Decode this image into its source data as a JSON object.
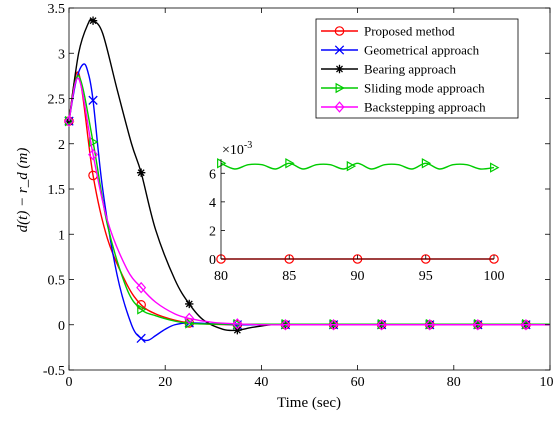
{
  "chart_data": [
    {
      "type": "line",
      "xlabel": "Time (sec)",
      "ylabel": "d(t) − r_d (m)",
      "xlim": [
        0,
        100
      ],
      "ylim": [
        -0.5,
        3.5
      ],
      "xticks": [
        "0",
        "20",
        "40",
        "60",
        "80",
        "100"
      ],
      "yticks": [
        "-0.5",
        "0",
        "0.5",
        "1",
        "1.5",
        "2",
        "2.5",
        "3",
        "3.5"
      ],
      "grid": false,
      "legend_position": "top-right",
      "series": [
        {
          "name": "Proposed method",
          "color": "#ff0000",
          "marker": "circle",
          "x": [
            0,
            2,
            5,
            8,
            12,
            15,
            18,
            22,
            25,
            30,
            35,
            40,
            45,
            55,
            65,
            75,
            85,
            95,
            100
          ],
          "y": [
            2.25,
            2.78,
            1.65,
            0.95,
            0.45,
            0.22,
            0.12,
            0.05,
            0.02,
            0.005,
            0.0,
            0.0,
            0.0,
            0.0,
            0.0,
            0.0,
            0.0,
            0.0,
            0.0
          ],
          "marker_x": [
            0,
            5,
            15,
            25,
            35,
            45,
            55,
            65,
            75,
            85,
            95
          ]
        },
        {
          "name": "Geometrical approach",
          "color": "#0000ff",
          "marker": "x",
          "x": [
            0,
            1.5,
            3,
            4,
            5,
            7,
            10,
            13,
            15,
            16.5,
            18,
            20,
            22,
            25,
            30,
            35,
            40,
            45,
            55,
            65,
            75,
            85,
            95,
            100
          ],
          "y": [
            2.25,
            2.7,
            2.88,
            2.78,
            2.48,
            1.5,
            0.55,
            0.0,
            -0.15,
            -0.17,
            -0.12,
            -0.05,
            0.0,
            0.02,
            0.01,
            0.0,
            0.0,
            0.0,
            0.0,
            0.0,
            0.0,
            0.0,
            0.0,
            0.0
          ],
          "marker_x": [
            0,
            5,
            15,
            25,
            35,
            45,
            55,
            65,
            75,
            85,
            95
          ]
        },
        {
          "name": "Bearing approach",
          "color": "#000000",
          "marker": "asterisk",
          "x": [
            0,
            2,
            4,
            5,
            7,
            10,
            13,
            15,
            18,
            22,
            25,
            28,
            32,
            35,
            38,
            42,
            45,
            55,
            65,
            75,
            85,
            95,
            100
          ],
          "y": [
            2.25,
            3.0,
            3.33,
            3.36,
            3.22,
            2.6,
            2.0,
            1.68,
            1.05,
            0.5,
            0.23,
            0.05,
            -0.05,
            -0.06,
            -0.03,
            0.0,
            0.0,
            0.0,
            0.0,
            0.0,
            0.0,
            0.0,
            0.0
          ],
          "marker_x": [
            0,
            5,
            15,
            25,
            35,
            45,
            55,
            65,
            75,
            85,
            95
          ]
        },
        {
          "name": "Sliding mode approach",
          "color": "#00cc00",
          "marker": "triangle-right",
          "x": [
            0,
            2,
            5,
            8,
            12,
            15,
            18,
            22,
            25,
            30,
            35,
            45,
            55,
            65,
            75,
            85,
            95,
            100
          ],
          "y": [
            2.25,
            2.75,
            2.02,
            1.1,
            0.4,
            0.17,
            0.1,
            0.04,
            0.015,
            0.007,
            0.0065,
            0.0065,
            0.0065,
            0.0065,
            0.0065,
            0.0065,
            0.0065,
            0.0065
          ],
          "marker_x": [
            0,
            5,
            15,
            25,
            35,
            45,
            55,
            65,
            75,
            85,
            95
          ]
        },
        {
          "name": "Backstepping approach",
          "color": "#ff00ff",
          "marker": "diamond",
          "x": [
            0,
            2,
            5,
            8,
            12,
            15,
            18,
            22,
            25,
            30,
            35,
            40,
            45,
            55,
            65,
            75,
            85,
            95,
            100
          ],
          "y": [
            2.25,
            2.72,
            1.88,
            1.15,
            0.62,
            0.41,
            0.25,
            0.12,
            0.07,
            0.025,
            0.01,
            0.0,
            0.0,
            0.0,
            0.0,
            0.0,
            0.0,
            0.0,
            0.0
          ],
          "marker_x": [
            0,
            5,
            15,
            25,
            35,
            45,
            55,
            65,
            75,
            85,
            95
          ]
        }
      ]
    },
    {
      "type": "line",
      "title": "",
      "xlim": [
        80,
        100
      ],
      "ylim": [
        0,
        0.007
      ],
      "xticks": [
        "80",
        "85",
        "90",
        "95",
        "100"
      ],
      "yticks": [
        "0",
        "2",
        "4",
        "6"
      ],
      "y_exponent_label": "×10",
      "y_exponent": "-3",
      "grid": false,
      "series": [
        {
          "name": "Sliding mode approach",
          "color": "#00cc00",
          "marker": "triangle-right",
          "x": [
            80,
            81,
            82,
            83,
            84,
            85,
            86,
            87,
            88,
            89,
            90,
            91,
            92,
            93,
            94,
            95,
            96,
            97,
            98,
            99,
            100
          ],
          "y": [
            0.0067,
            0.0063,
            0.0066,
            0.0066,
            0.0063,
            0.0067,
            0.0063,
            0.0066,
            0.0066,
            0.0063,
            0.0067,
            0.0063,
            0.0066,
            0.0066,
            0.0063,
            0.0067,
            0.0063,
            0.0066,
            0.0066,
            0.0063,
            0.0064
          ],
          "marker_x": [
            80,
            85,
            89.5,
            95,
            100
          ]
        },
        {
          "name": "Proposed method",
          "color": "#ff0000",
          "marker": "circle",
          "x": [
            80,
            100
          ],
          "y": [
            0.0,
            0.0
          ],
          "marker_x": [
            80,
            85,
            90,
            95,
            100
          ]
        }
      ]
    }
  ]
}
